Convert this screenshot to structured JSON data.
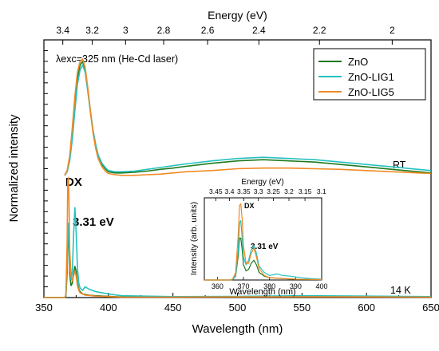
{
  "chart_data": {
    "type": "line",
    "main": {
      "xlabel": "Wavelength (nm)",
      "ylabel": "Normalized intensity",
      "top_xlabel": "Energy (eV)",
      "xlim": [
        350,
        650
      ],
      "ylim": [
        0,
        2.15
      ],
      "yticks_shown": false,
      "x_ticks": [
        "350",
        "400",
        "450",
        "500",
        "550",
        "600",
        "650"
      ],
      "top_ticks": [
        "3.4",
        "3.2",
        "3",
        "2.8",
        "2.6",
        "2.4",
        "2.2",
        "2"
      ],
      "annotations": {
        "excitation": "λexc=325 nm (He-Cd laser)",
        "rt": "RT",
        "lowT": "14 K",
        "dx": "DX",
        "peak": "3.31 eV"
      },
      "colors": {
        "ZnO": "#1e7a1e",
        "ZnO-LIG1": "#25c0c0",
        "ZnO-LIG5": "#f08a24"
      },
      "series": [
        {
          "name": "ZnO",
          "group": "RT",
          "color": "#1e7a1e",
          "offset": 1.0,
          "x": [
            366,
            368,
            370,
            372,
            374,
            376,
            378,
            380,
            382,
            384,
            386,
            388,
            390,
            392,
            395,
            398,
            400,
            405,
            410,
            420,
            430,
            440,
            450,
            460,
            480,
            500,
            520,
            540,
            560,
            580,
            600,
            620,
            640,
            650
          ],
          "y": [
            0.02,
            0.05,
            0.15,
            0.35,
            0.6,
            0.82,
            0.94,
            0.97,
            0.9,
            0.74,
            0.56,
            0.4,
            0.28,
            0.19,
            0.11,
            0.07,
            0.05,
            0.04,
            0.04,
            0.045,
            0.055,
            0.07,
            0.08,
            0.095,
            0.12,
            0.14,
            0.15,
            0.14,
            0.13,
            0.11,
            0.09,
            0.07,
            0.05,
            0.04
          ]
        },
        {
          "name": "ZnO-LIG1",
          "group": "RT",
          "color": "#25c0c0",
          "offset": 1.0,
          "x": [
            366,
            368,
            370,
            372,
            374,
            376,
            378,
            380,
            382,
            384,
            386,
            388,
            390,
            392,
            395,
            398,
            400,
            405,
            410,
            420,
            430,
            440,
            450,
            460,
            480,
            500,
            520,
            540,
            560,
            580,
            600,
            620,
            640,
            650
          ],
          "y": [
            0.02,
            0.05,
            0.14,
            0.32,
            0.56,
            0.78,
            0.9,
            0.94,
            0.88,
            0.72,
            0.55,
            0.4,
            0.28,
            0.19,
            0.12,
            0.08,
            0.06,
            0.05,
            0.05,
            0.055,
            0.07,
            0.085,
            0.1,
            0.115,
            0.14,
            0.16,
            0.17,
            0.16,
            0.15,
            0.13,
            0.11,
            0.09,
            0.07,
            0.06
          ]
        },
        {
          "name": "ZnO-LIG5",
          "group": "RT",
          "color": "#f08a24",
          "offset": 1.0,
          "x": [
            366,
            368,
            370,
            372,
            374,
            376,
            378,
            380,
            382,
            384,
            386,
            388,
            390,
            392,
            395,
            398,
            400,
            405,
            410,
            420,
            430,
            440,
            450,
            460,
            480,
            500,
            520,
            540,
            560,
            580,
            600,
            620,
            640,
            650
          ],
          "y": [
            0.02,
            0.06,
            0.18,
            0.42,
            0.68,
            0.88,
            0.97,
            0.99,
            0.92,
            0.75,
            0.55,
            0.38,
            0.25,
            0.16,
            0.09,
            0.05,
            0.035,
            0.025,
            0.02,
            0.02,
            0.025,
            0.03,
            0.04,
            0.05,
            0.06,
            0.075,
            0.08,
            0.08,
            0.075,
            0.07,
            0.06,
            0.05,
            0.04,
            0.035
          ]
        },
        {
          "name": "ZnO",
          "group": "14 K",
          "color": "#1e7a1e",
          "offset": 0.0,
          "x": [
            350,
            366,
            367,
            368,
            368.5,
            369,
            369.5,
            370,
            371,
            372,
            373,
            374,
            375,
            376,
            377,
            378,
            380,
            382,
            385,
            390,
            400,
            410,
            450,
            500,
            550,
            600,
            650
          ],
          "y": [
            0,
            0,
            0.01,
            0.2,
            0.52,
            0.55,
            0.4,
            0.2,
            0.1,
            0.12,
            0.2,
            0.26,
            0.22,
            0.12,
            0.07,
            0.05,
            0.03,
            0.025,
            0.02,
            0.015,
            0.01,
            0.005,
            0.005,
            0.008,
            0.01,
            0.008,
            0.005
          ]
        },
        {
          "name": "ZnO-LIG1",
          "group": "14 K",
          "color": "#25c0c0",
          "offset": 0.0,
          "x": [
            350,
            366,
            367,
            368,
            368.5,
            369,
            369.5,
            370,
            371,
            372,
            373,
            374,
            375,
            376,
            377,
            378,
            380,
            382,
            385,
            390,
            400,
            410,
            450,
            500,
            550,
            600,
            650
          ],
          "y": [
            0,
            0,
            0.01,
            0.25,
            0.6,
            0.62,
            0.45,
            0.25,
            0.15,
            0.22,
            0.52,
            0.75,
            0.55,
            0.25,
            0.12,
            0.08,
            0.06,
            0.09,
            0.07,
            0.05,
            0.03,
            0.015,
            0.008,
            0.01,
            0.015,
            0.012,
            0.008
          ]
        },
        {
          "name": "ZnO-LIG5",
          "group": "14 K",
          "color": "#f08a24",
          "offset": 0.0,
          "x": [
            350,
            366,
            367,
            368,
            368.5,
            369,
            369.5,
            370,
            371,
            372,
            373,
            374,
            375,
            376,
            377,
            378,
            380,
            382,
            385,
            390,
            400,
            410,
            450,
            500,
            550,
            600,
            650
          ],
          "y": [
            0,
            0,
            0.02,
            0.45,
            0.98,
            1.0,
            0.8,
            0.4,
            0.18,
            0.14,
            0.18,
            0.22,
            0.18,
            0.1,
            0.06,
            0.04,
            0.03,
            0.02,
            0.018,
            0.012,
            0.008,
            0.004,
            0.003,
            0.005,
            0.006,
            0.005,
            0.003
          ]
        }
      ]
    },
    "inset": {
      "xlabel": "Wavelength (nm)",
      "ylabel": "Intensity (arb. units)",
      "top_xlabel": "Energy (eV)",
      "xlim": [
        355,
        400
      ],
      "ylim": [
        0,
        1.08
      ],
      "x_ticks": [
        "360",
        "370",
        "380",
        "390",
        "400"
      ],
      "top_ticks": [
        "3.45",
        "3.4",
        "3.35",
        "3.3",
        "3.25",
        "3.2",
        "3.15",
        "3.1"
      ],
      "annotations": {
        "dx": "DX",
        "peak": "3.31 eV"
      },
      "series": [
        {
          "name": "ZnO",
          "color": "#1e7a1e",
          "x": [
            355,
            365,
            366,
            367,
            368,
            368.5,
            369,
            369.5,
            370,
            371,
            372,
            373,
            374,
            375,
            376,
            378,
            380,
            385,
            390,
            400
          ],
          "y": [
            0,
            0,
            0.01,
            0.05,
            0.32,
            0.55,
            0.55,
            0.4,
            0.2,
            0.12,
            0.14,
            0.22,
            0.26,
            0.2,
            0.1,
            0.05,
            0.03,
            0.02,
            0.01,
            0.005
          ]
        },
        {
          "name": "ZnO-LIG1",
          "color": "#25c0c0",
          "x": [
            355,
            365,
            366,
            367,
            368,
            368.5,
            369,
            369.5,
            370,
            371,
            372,
            373,
            374,
            375,
            376,
            378,
            380,
            383,
            385,
            388,
            390,
            395,
            400
          ],
          "y": [
            0,
            0,
            0.01,
            0.06,
            0.4,
            0.75,
            0.78,
            0.55,
            0.3,
            0.2,
            0.26,
            0.4,
            0.45,
            0.35,
            0.18,
            0.1,
            0.06,
            0.08,
            0.06,
            0.05,
            0.04,
            0.02,
            0.01
          ]
        },
        {
          "name": "ZnO-LIG5",
          "color": "#f08a24",
          "x": [
            355,
            365,
            366,
            367,
            368,
            368.5,
            369,
            369.5,
            370,
            371,
            372,
            373,
            374,
            375,
            376,
            378,
            380,
            385,
            390,
            400
          ],
          "y": [
            0,
            0,
            0.02,
            0.1,
            0.6,
            0.98,
            1.0,
            0.8,
            0.45,
            0.22,
            0.22,
            0.35,
            0.42,
            0.3,
            0.15,
            0.06,
            0.03,
            0.02,
            0.01,
            0.005
          ]
        }
      ]
    }
  }
}
